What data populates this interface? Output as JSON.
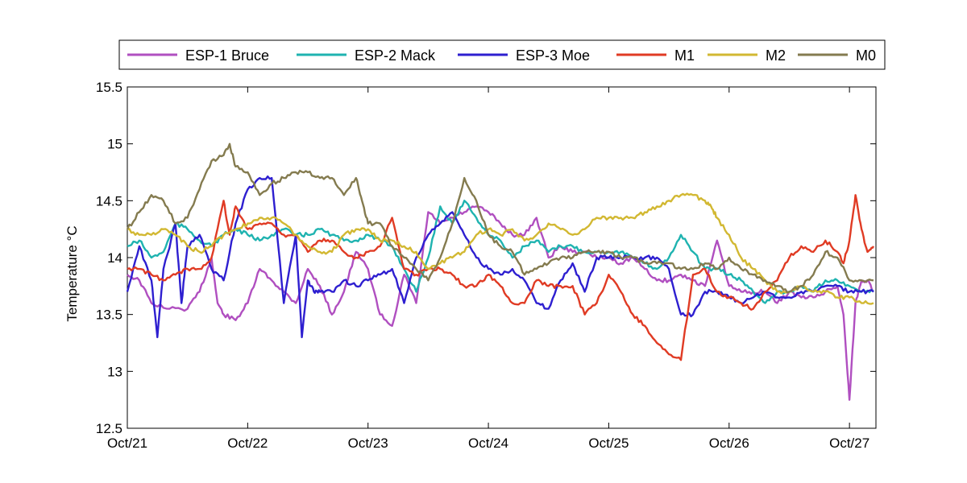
{
  "chart_data": {
    "type": "line",
    "ylabel": "Temperature °C",
    "xlabel": "",
    "title": "",
    "ylim": [
      12.5,
      15.5
    ],
    "xlim": [
      0,
      6.22
    ],
    "yticks": [
      12.5,
      13,
      13.5,
      14,
      14.5,
      15,
      15.5
    ],
    "ytick_labels": [
      "12.5",
      "13",
      "13.5",
      "14",
      "14.5",
      "15",
      "15.5"
    ],
    "xticks": [
      0,
      1,
      2,
      3,
      4,
      5,
      6
    ],
    "xtick_labels": [
      "Oct/21",
      "Oct/22",
      "Oct/23",
      "Oct/24",
      "Oct/25",
      "Oct/26",
      "Oct/27"
    ],
    "grid": false,
    "legend_position": "top-outside",
    "series": [
      {
        "name": "ESP-1 Bruce",
        "color": "#b04fc0",
        "x": [
          0,
          0.1,
          0.2,
          0.35,
          0.5,
          0.6,
          0.7,
          0.75,
          0.8,
          0.9,
          1.0,
          1.1,
          1.2,
          1.3,
          1.4,
          1.5,
          1.6,
          1.7,
          1.8,
          1.9,
          2.0,
          2.1,
          2.2,
          2.3,
          2.4,
          2.5,
          2.6,
          2.7,
          2.8,
          2.9,
          3.0,
          3.1,
          3.2,
          3.3,
          3.4,
          3.5,
          3.6,
          3.7,
          3.8,
          3.9,
          4.0,
          4.1,
          4.2,
          4.3,
          4.4,
          4.5,
          4.6,
          4.7,
          4.8,
          4.9,
          5.0,
          5.1,
          5.2,
          5.3,
          5.4,
          5.5,
          5.6,
          5.7,
          5.8,
          5.9,
          5.95,
          6.0,
          6.05,
          6.1,
          6.15,
          6.2
        ],
        "y": [
          13.85,
          13.8,
          13.6,
          13.55,
          13.55,
          13.7,
          14.0,
          13.6,
          13.5,
          13.45,
          13.6,
          13.9,
          13.8,
          13.7,
          13.6,
          13.9,
          13.75,
          13.5,
          13.7,
          14.05,
          13.9,
          13.5,
          13.4,
          13.85,
          13.6,
          14.4,
          14.3,
          14.35,
          14.4,
          14.45,
          14.4,
          14.3,
          14.2,
          14.2,
          14.35,
          14.0,
          14.1,
          14.05,
          14.05,
          14.0,
          14.0,
          13.95,
          14.0,
          13.9,
          13.8,
          13.8,
          13.85,
          13.8,
          13.75,
          14.15,
          13.75,
          13.7,
          13.7,
          13.7,
          13.6,
          13.7,
          13.65,
          13.65,
          13.7,
          13.75,
          13.5,
          12.75,
          13.6,
          13.8,
          13.8,
          13.7
        ]
      },
      {
        "name": "ESP-2 Mack",
        "color": "#1fb3b0",
        "x": [
          0,
          0.1,
          0.2,
          0.3,
          0.4,
          0.5,
          0.6,
          0.7,
          0.8,
          0.9,
          1.0,
          1.1,
          1.2,
          1.3,
          1.4,
          1.5,
          1.6,
          1.7,
          1.8,
          1.9,
          2.0,
          2.1,
          2.2,
          2.3,
          2.4,
          2.5,
          2.6,
          2.7,
          2.8,
          2.9,
          3.0,
          3.1,
          3.2,
          3.3,
          3.4,
          3.5,
          3.6,
          3.7,
          3.8,
          3.9,
          4.0,
          4.1,
          4.2,
          4.3,
          4.4,
          4.5,
          4.6,
          4.7,
          4.8,
          4.9,
          5.0,
          5.1,
          5.2,
          5.3,
          5.4,
          5.5,
          5.6,
          5.7,
          5.8,
          5.9,
          6.0,
          6.1,
          6.2
        ],
        "y": [
          14.1,
          14.15,
          14.0,
          14.05,
          14.3,
          14.25,
          14.15,
          14.1,
          14.2,
          14.25,
          14.2,
          14.15,
          14.2,
          14.25,
          14.2,
          14.2,
          14.25,
          14.2,
          14.15,
          14.15,
          14.2,
          14.15,
          14.1,
          13.9,
          13.7,
          14.0,
          14.45,
          14.3,
          14.5,
          14.35,
          14.2,
          14.15,
          14.0,
          14.1,
          14.15,
          14.05,
          14.1,
          14.1,
          14.05,
          14.05,
          14.05,
          14.05,
          14.0,
          13.95,
          13.9,
          14.0,
          14.2,
          14.05,
          13.9,
          13.9,
          13.85,
          13.8,
          13.7,
          13.6,
          13.7,
          13.7,
          13.75,
          13.7,
          13.8,
          13.8,
          13.75,
          13.7,
          13.7
        ]
      },
      {
        "name": "ESP-3 Moe",
        "color": "#2e1fd0",
        "x": [
          0,
          0.1,
          0.2,
          0.25,
          0.3,
          0.4,
          0.45,
          0.5,
          0.6,
          0.7,
          0.8,
          0.9,
          1.0,
          1.1,
          1.2,
          1.3,
          1.4,
          1.45,
          1.5,
          1.55,
          1.6,
          1.7,
          1.8,
          1.9,
          2.0,
          2.1,
          2.2,
          2.3,
          2.4,
          2.5,
          2.6,
          2.7,
          2.8,
          2.9,
          3.0,
          3.1,
          3.2,
          3.3,
          3.4,
          3.5,
          3.6,
          3.7,
          3.8,
          3.9,
          4.0,
          4.1,
          4.2,
          4.3,
          4.4,
          4.5,
          4.6,
          4.7,
          4.8,
          4.9,
          5.0,
          5.1,
          5.2,
          5.3,
          5.4,
          5.5,
          5.6,
          5.7,
          5.8,
          5.9,
          6.0,
          6.1,
          6.2
        ],
        "y": [
          13.7,
          14.1,
          13.8,
          13.3,
          13.9,
          14.3,
          13.6,
          14.1,
          14.2,
          13.9,
          13.8,
          14.3,
          14.6,
          14.7,
          14.7,
          13.6,
          14.2,
          13.3,
          13.8,
          13.7,
          13.7,
          13.7,
          13.8,
          13.75,
          13.8,
          13.85,
          13.9,
          13.6,
          14.0,
          14.2,
          14.3,
          14.4,
          14.2,
          14.0,
          13.9,
          13.85,
          13.9,
          13.8,
          13.6,
          13.55,
          13.8,
          13.95,
          13.7,
          14.0,
          14.0,
          14.0,
          14.0,
          14.0,
          14.0,
          13.9,
          13.5,
          13.5,
          13.7,
          13.7,
          13.65,
          13.6,
          13.65,
          13.7,
          13.65,
          13.65,
          13.7,
          13.7,
          13.75,
          13.75,
          13.7,
          13.7,
          13.7
        ]
      },
      {
        "name": "M1",
        "color": "#e03b24",
        "x": [
          0,
          0.1,
          0.2,
          0.3,
          0.4,
          0.5,
          0.6,
          0.7,
          0.8,
          0.85,
          0.9,
          1.0,
          1.1,
          1.2,
          1.3,
          1.4,
          1.5,
          1.6,
          1.7,
          1.8,
          1.9,
          2.0,
          2.1,
          2.2,
          2.3,
          2.4,
          2.5,
          2.6,
          2.7,
          2.8,
          2.9,
          3.0,
          3.1,
          3.2,
          3.3,
          3.4,
          3.5,
          3.6,
          3.7,
          3.8,
          3.9,
          4.0,
          4.1,
          4.2,
          4.3,
          4.4,
          4.5,
          4.6,
          4.7,
          4.8,
          4.9,
          5.0,
          5.1,
          5.2,
          5.3,
          5.4,
          5.5,
          5.6,
          5.7,
          5.8,
          5.9,
          5.95,
          6.0,
          6.05,
          6.1,
          6.15,
          6.2
        ],
        "y": [
          13.9,
          13.9,
          13.85,
          13.8,
          13.85,
          13.9,
          13.9,
          14.0,
          14.5,
          14.2,
          14.45,
          14.25,
          14.3,
          14.3,
          14.2,
          14.2,
          14.05,
          14.15,
          14.15,
          14.05,
          14.0,
          14.05,
          14.1,
          14.35,
          13.9,
          13.85,
          13.9,
          13.9,
          13.85,
          13.75,
          13.75,
          13.85,
          13.75,
          13.6,
          13.6,
          13.8,
          13.75,
          13.75,
          13.75,
          13.5,
          13.6,
          13.85,
          13.7,
          13.5,
          13.4,
          13.25,
          13.15,
          13.1,
          13.85,
          13.9,
          13.7,
          13.65,
          13.6,
          13.55,
          13.7,
          13.8,
          14.0,
          14.1,
          14.05,
          14.15,
          14.05,
          13.95,
          14.15,
          14.55,
          14.25,
          14.05,
          14.1
        ]
      },
      {
        "name": "M2",
        "color": "#d2b832",
        "x": [
          0,
          0.1,
          0.2,
          0.3,
          0.4,
          0.5,
          0.6,
          0.7,
          0.8,
          0.9,
          1.0,
          1.1,
          1.2,
          1.3,
          1.4,
          1.5,
          1.6,
          1.7,
          1.8,
          1.9,
          2.0,
          2.1,
          2.2,
          2.3,
          2.4,
          2.5,
          2.6,
          2.7,
          2.8,
          2.9,
          3.0,
          3.1,
          3.2,
          3.3,
          3.4,
          3.5,
          3.6,
          3.7,
          3.8,
          3.9,
          4.0,
          4.1,
          4.2,
          4.3,
          4.4,
          4.5,
          4.6,
          4.7,
          4.8,
          4.85,
          4.9,
          5.0,
          5.1,
          5.2,
          5.3,
          5.4,
          5.5,
          5.6,
          5.7,
          5.8,
          5.9,
          6.0,
          6.1,
          6.2
        ],
        "y": [
          14.25,
          14.2,
          14.2,
          14.25,
          14.2,
          14.1,
          14.05,
          14.1,
          14.2,
          14.25,
          14.3,
          14.35,
          14.35,
          14.3,
          14.2,
          14.1,
          14.05,
          14.05,
          14.2,
          14.25,
          14.25,
          14.15,
          14.15,
          14.1,
          14.05,
          13.9,
          13.95,
          14.0,
          14.05,
          14.2,
          14.25,
          14.2,
          14.25,
          14.15,
          14.2,
          14.3,
          14.25,
          14.2,
          14.25,
          14.35,
          14.35,
          14.35,
          14.35,
          14.4,
          14.45,
          14.5,
          14.55,
          14.55,
          14.5,
          14.45,
          14.35,
          14.2,
          14.0,
          13.9,
          13.8,
          13.7,
          13.7,
          13.75,
          13.7,
          13.7,
          13.65,
          13.65,
          13.6,
          13.6
        ]
      },
      {
        "name": "M0",
        "color": "#847b4f",
        "x": [
          0,
          0.1,
          0.2,
          0.3,
          0.4,
          0.5,
          0.6,
          0.7,
          0.8,
          0.85,
          0.9,
          1.0,
          1.1,
          1.2,
          1.3,
          1.4,
          1.5,
          1.6,
          1.7,
          1.8,
          1.9,
          1.95,
          2.0,
          2.1,
          2.2,
          2.3,
          2.4,
          2.5,
          2.6,
          2.7,
          2.8,
          2.9,
          3.0,
          3.1,
          3.2,
          3.3,
          3.4,
          3.5,
          3.6,
          3.7,
          3.8,
          3.9,
          4.0,
          4.1,
          4.2,
          4.3,
          4.4,
          4.5,
          4.6,
          4.7,
          4.8,
          4.9,
          5.0,
          5.1,
          5.2,
          5.3,
          5.4,
          5.5,
          5.6,
          5.7,
          5.8,
          5.9,
          6.0,
          6.1,
          6.2
        ],
        "y": [
          14.25,
          14.4,
          14.55,
          14.5,
          14.3,
          14.35,
          14.6,
          14.85,
          14.9,
          15.0,
          14.8,
          14.75,
          14.55,
          14.65,
          14.7,
          14.75,
          14.75,
          14.7,
          14.7,
          14.55,
          14.7,
          14.5,
          14.3,
          14.3,
          14.1,
          14.0,
          13.9,
          13.8,
          14.0,
          14.3,
          14.7,
          14.5,
          14.2,
          14.1,
          14.05,
          13.85,
          13.9,
          13.95,
          14.0,
          14.0,
          14.05,
          14.05,
          14.05,
          14.0,
          14.0,
          13.95,
          13.95,
          13.95,
          13.9,
          13.9,
          13.95,
          13.9,
          14.0,
          13.9,
          13.85,
          13.8,
          13.75,
          13.7,
          13.75,
          13.85,
          14.05,
          14.0,
          13.8,
          13.8,
          13.8
        ]
      }
    ]
  }
}
